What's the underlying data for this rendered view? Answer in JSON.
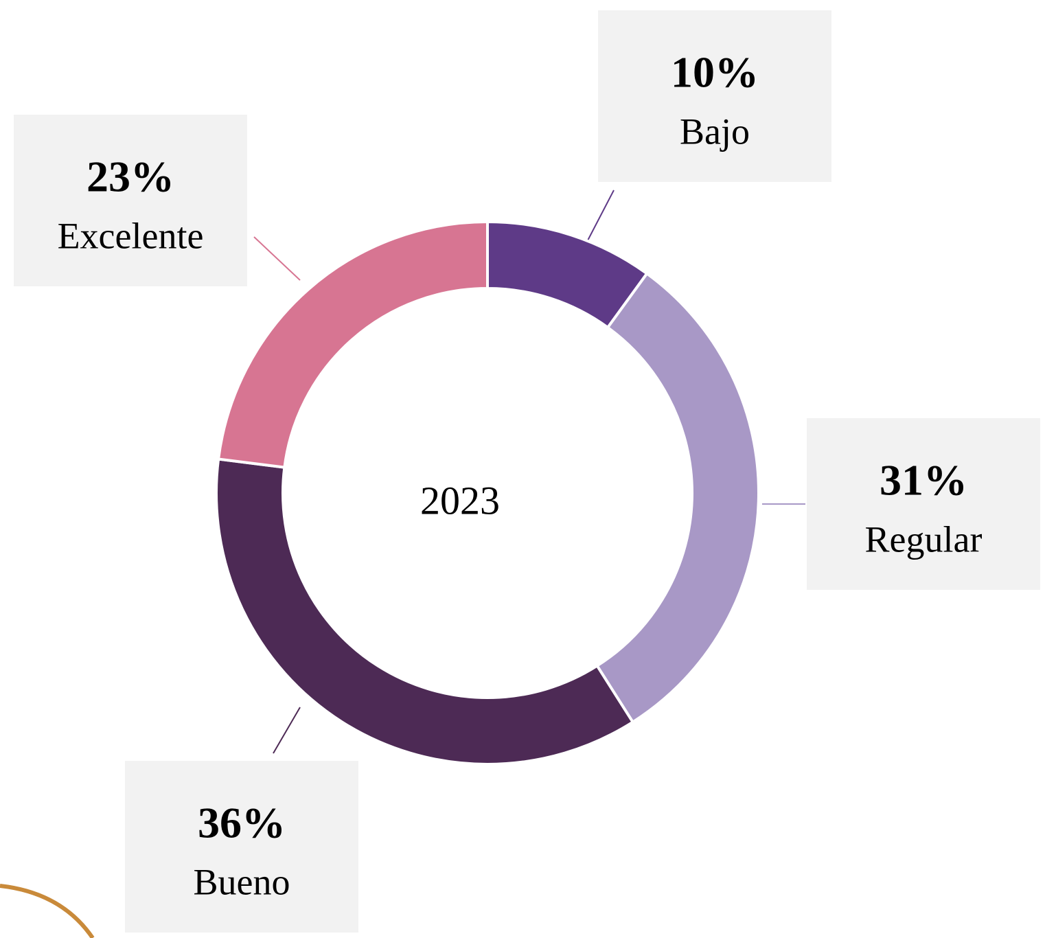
{
  "chart_data": {
    "type": "donut",
    "title": "2023",
    "categories": [
      "Bajo",
      "Regular",
      "Bueno",
      "Excelente"
    ],
    "values": [
      10,
      31,
      36,
      23
    ],
    "value_labels": [
      "10%",
      "31%",
      "36%",
      "23%"
    ],
    "colors": [
      "#5e3a87",
      "#a898c6",
      "#4d2a55",
      "#d77592"
    ]
  }
}
